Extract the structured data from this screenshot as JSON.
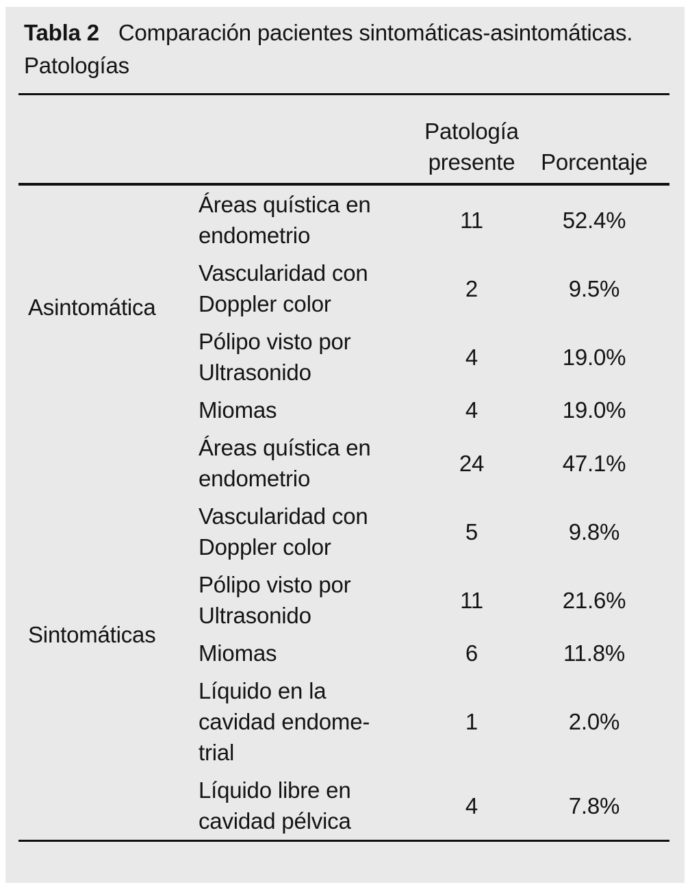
{
  "colors": {
    "panel_background": "#e9e9e9",
    "text": "#141414",
    "rule": "#101010"
  },
  "chart_data": {
    "type": "table",
    "caption_label": "Tabla 2",
    "caption": "Comparación pacientes sintomáticas-asintomáticas. Patologías",
    "columns": {
      "present": "Patología presente",
      "percentage": "Porcentaje"
    },
    "groups": [
      {
        "label": "Asintomática",
        "rows": [
          {
            "pathology": "Áreas quística en endometrio",
            "present": "11",
            "percentage": "52.4%"
          },
          {
            "pathology": "Vascularidad con Doppler color",
            "present": "2",
            "percentage": "9.5%"
          },
          {
            "pathology": "Pólipo visto por Ultrasonido",
            "present": "4",
            "percentage": "19.0%"
          },
          {
            "pathology": "Miomas",
            "present": "4",
            "percentage": "19.0%"
          }
        ]
      },
      {
        "label": "Sintomáticas",
        "rows": [
          {
            "pathology": "Áreas quística en endometrio",
            "present": "24",
            "percentage": "47.1%"
          },
          {
            "pathology": "Vascularidad con Doppler color",
            "present": "5",
            "percentage": "9.8%"
          },
          {
            "pathology": "Pólipo visto por Ultrasonido",
            "present": "11",
            "percentage": "21.6%"
          },
          {
            "pathology": "Miomas",
            "present": "6",
            "percentage": "11.8%"
          },
          {
            "pathology": "Líquido en la cavidad endome-trial",
            "present": "1",
            "percentage": "2.0%"
          },
          {
            "pathology": "Líquido libre en cavidad pélvica",
            "present": "4",
            "percentage": "7.8%"
          }
        ]
      }
    ]
  }
}
